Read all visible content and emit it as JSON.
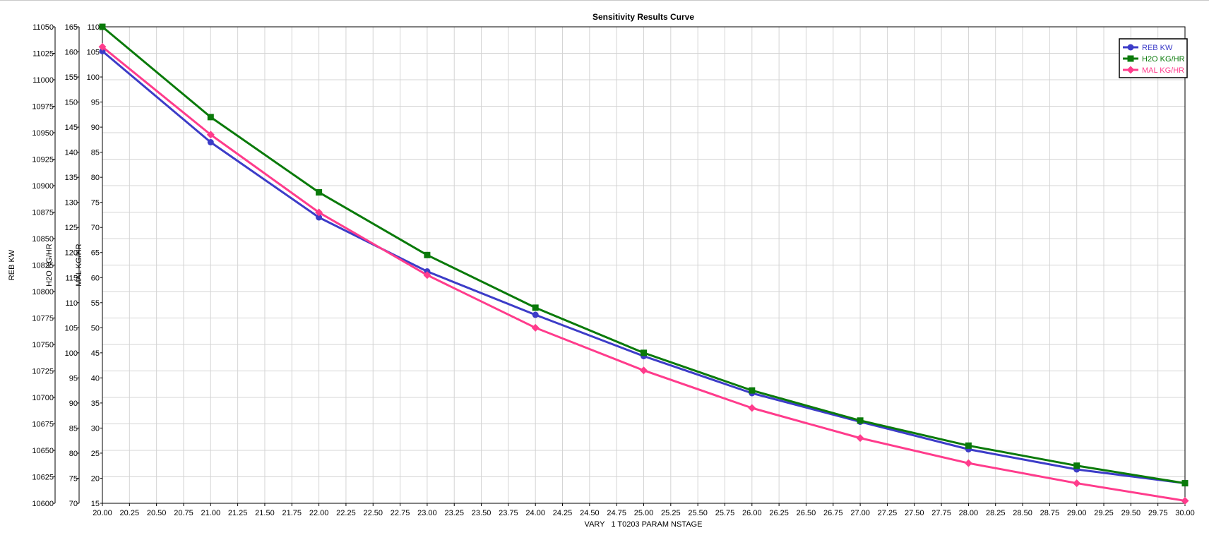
{
  "chart_data": {
    "type": "line",
    "title": "Sensitivity Results Curve",
    "xlabel": "VARY   1 T0203 PARAM NSTAGE",
    "xlim": [
      20,
      30
    ],
    "x_ticks": [
      "20.00",
      "20.25",
      "20.50",
      "20.75",
      "21.00",
      "21.25",
      "21.50",
      "21.75",
      "22.00",
      "22.25",
      "22.50",
      "22.75",
      "23.00",
      "23.25",
      "23.50",
      "23.75",
      "24.00",
      "24.25",
      "24.50",
      "24.75",
      "25.00",
      "25.25",
      "25.50",
      "25.75",
      "26.00",
      "26.25",
      "26.50",
      "26.75",
      "27.00",
      "27.25",
      "27.50",
      "27.75",
      "28.00",
      "28.25",
      "28.50",
      "28.75",
      "29.00",
      "29.25",
      "29.50",
      "29.75",
      "30.00"
    ],
    "x": [
      20,
      21,
      22,
      23,
      24,
      25,
      26,
      27,
      28,
      29,
      30
    ],
    "grid": true,
    "legend_position": "top-right",
    "y_axes": [
      {
        "id": "reb",
        "label": "REB KW",
        "ylim": [
          10600,
          11050
        ],
        "ticks": [
          "10600",
          "10625",
          "10650",
          "10675",
          "10700",
          "10725",
          "10750",
          "10775",
          "10800",
          "10825",
          "10850",
          "10875",
          "10900",
          "10925",
          "10950",
          "10975",
          "11000",
          "11025",
          "11050"
        ]
      },
      {
        "id": "h2o",
        "label": "H2O KG/HR",
        "ylim": [
          70,
          165
        ],
        "ticks": [
          "70",
          "75",
          "80",
          "85",
          "90",
          "95",
          "100",
          "105",
          "110",
          "115",
          "120",
          "125",
          "130",
          "135",
          "140",
          "145",
          "150",
          "155",
          "160",
          "165"
        ]
      },
      {
        "id": "mal",
        "label": "MAL KG/HR",
        "ylim": [
          15,
          110
        ],
        "ticks": [
          "15",
          "20",
          "25",
          "30",
          "35",
          "40",
          "45",
          "50",
          "55",
          "60",
          "65",
          "70",
          "75",
          "80",
          "85",
          "90",
          "95",
          "100",
          "105",
          "110"
        ]
      }
    ],
    "series": [
      {
        "name": "REB KW",
        "axis": "reb",
        "color": "#3c3cc8",
        "marker": "circle",
        "values": [
          11027,
          10941,
          10870,
          10819,
          10778,
          10739,
          10704,
          10677,
          10651,
          10632,
          10619
        ]
      },
      {
        "name": "H2O KG/HR",
        "axis": "h2o",
        "color": "#0a7a0a",
        "marker": "square",
        "values": [
          165,
          147,
          132,
          119.5,
          109,
          100,
          92.5,
          86.5,
          81.5,
          77.5,
          74
        ]
      },
      {
        "name": "MAL KG/HR",
        "axis": "mal",
        "color": "#ff3c8c",
        "marker": "diamond",
        "values": [
          106,
          88.5,
          73,
          60.5,
          50,
          41.5,
          34,
          28,
          23,
          19,
          15.5
        ]
      }
    ]
  }
}
